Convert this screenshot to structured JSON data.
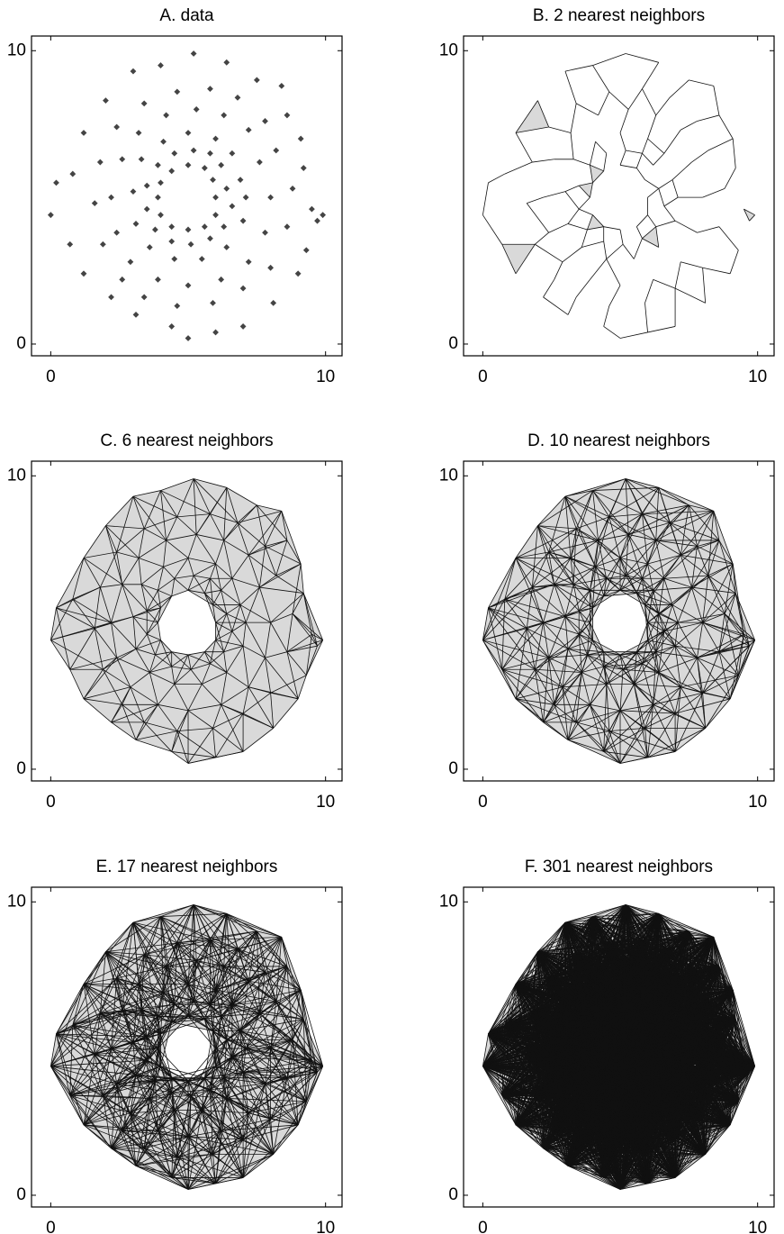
{
  "chart_data": [
    {
      "type": "scatter",
      "title": "A. data",
      "color": "#444444",
      "x": [
        6.0,
        5.9,
        5.6,
        5.0,
        4.4,
        4.0,
        3.9,
        4.0,
        4.4,
        5.0,
        5.6,
        6.0,
        6.4,
        6.2,
        5.8,
        5.2,
        4.5,
        3.9,
        3.5,
        3.5,
        3.8,
        4.4,
        5.1,
        5.8,
        6.3,
        6.6,
        6.9,
        6.6,
        6.0,
        5.0,
        4.1,
        3.3,
        3.0,
        3.1,
        3.6,
        4.5,
        5.5,
        6.4,
        7.0,
        7.1,
        7.6,
        7.2,
        6.3,
        5.3,
        4.2,
        3.2,
        2.6,
        2.2,
        2.4,
        2.9,
        3.9,
        5.0,
        6.2,
        7.2,
        7.8,
        8.0,
        8.2,
        7.8,
        6.8,
        5.8,
        4.6,
        3.4,
        2.4,
        1.8,
        1.6,
        1.9,
        2.6,
        3.4,
        4.6,
        5.9,
        7.0,
        8.0,
        8.6,
        8.8,
        9.5,
        9.7,
        9.2,
        8.6,
        7.5,
        6.4,
        5.2,
        4.0,
        3.0,
        2.0,
        1.2,
        0.8,
        0.2,
        0.0,
        0.7,
        1.2,
        2.2,
        3.1,
        4.4,
        5.0,
        6.0,
        7.0,
        8.1,
        9.0,
        9.3,
        9.9,
        9.1,
        8.4
      ],
      "y": [
        5.0,
        5.6,
        6.0,
        6.1,
        5.9,
        5.5,
        5.0,
        4.4,
        4.0,
        3.9,
        4.0,
        4.4,
        5.3,
        6.1,
        6.5,
        6.6,
        6.5,
        6.1,
        5.4,
        4.6,
        3.9,
        3.5,
        3.4,
        3.6,
        4.0,
        4.7,
        5.6,
        6.5,
        7.0,
        7.2,
        6.9,
        6.3,
        5.2,
        4.1,
        3.3,
        2.9,
        2.9,
        3.3,
        4.2,
        5.0,
        6.2,
        7.3,
        7.8,
        8.0,
        7.8,
        7.2,
        6.3,
        5.0,
        3.8,
        2.8,
        2.2,
        2.0,
        2.2,
        2.8,
        3.8,
        5.0,
        6.6,
        7.6,
        8.4,
        8.7,
        8.6,
        8.2,
        7.4,
        6.2,
        4.8,
        3.4,
        2.2,
        1.6,
        1.3,
        1.4,
        1.9,
        2.6,
        4.0,
        5.3,
        4.6,
        4.2,
        6.0,
        7.8,
        9.0,
        9.6,
        9.9,
        9.5,
        9.3,
        8.3,
        7.2,
        5.8,
        5.5,
        4.4,
        3.4,
        2.4,
        1.6,
        1.0,
        0.6,
        0.2,
        0.4,
        0.6,
        1.4,
        2.4,
        3.2,
        4.4,
        7.0,
        8.8
      ],
      "xlim": [
        -0.7,
        10.6
      ],
      "ylim": [
        -0.4,
        10.5
      ],
      "xticks": [
        0,
        10
      ],
      "yticks": [
        0,
        10
      ]
    },
    {
      "type": "knn-mesh",
      "title": "B. 2 nearest neighbors",
      "neighbors": 2,
      "fill": "#d9d9d9",
      "line_color": "#111111",
      "xlim": [
        -0.7,
        10.6
      ],
      "ylim": [
        -0.4,
        10.5
      ],
      "xticks": [
        0,
        10
      ],
      "yticks": [
        0,
        10
      ]
    },
    {
      "type": "knn-mesh",
      "title": "C. 6 nearest neighbors",
      "neighbors": 6,
      "fill": "#d9d9d9",
      "line_color": "#111111",
      "xlim": [
        -0.7,
        10.6
      ],
      "ylim": [
        -0.4,
        10.5
      ],
      "xticks": [
        0,
        10
      ],
      "yticks": [
        0,
        10
      ]
    },
    {
      "type": "knn-mesh",
      "title": "D. 10 nearest neighbors",
      "neighbors": 10,
      "fill": "#d9d9d9",
      "line_color": "#111111",
      "xlim": [
        -0.7,
        10.6
      ],
      "ylim": [
        -0.4,
        10.5
      ],
      "xticks": [
        0,
        10
      ],
      "yticks": [
        0,
        10
      ]
    },
    {
      "type": "knn-mesh",
      "title": "E. 17 nearest neighbors",
      "neighbors": 17,
      "fill": "#d9d9d9",
      "line_color": "#111111",
      "xlim": [
        -0.7,
        10.6
      ],
      "ylim": [
        -0.4,
        10.5
      ],
      "xticks": [
        0,
        10
      ],
      "yticks": [
        0,
        10
      ]
    },
    {
      "type": "knn-mesh",
      "title": "F. 301 nearest neighbors",
      "neighbors": 301,
      "fill": "#d9d9d9",
      "line_color": "#111111",
      "xlim": [
        -0.7,
        10.6
      ],
      "ylim": [
        -0.4,
        10.5
      ],
      "xticks": [
        0,
        10
      ],
      "yticks": [
        0,
        10
      ]
    }
  ]
}
